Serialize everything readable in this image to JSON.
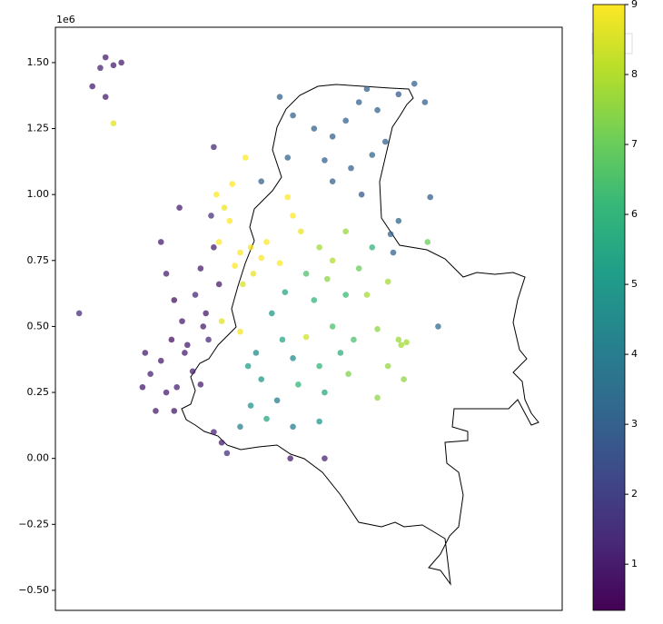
{
  "chart_data": {
    "type": "scatter",
    "offset_text": "1e6",
    "xlim": [
      0,
      1.92
    ],
    "ylim": [
      -0.576,
      1.634
    ],
    "yticks": [
      {
        "value": -0.5,
        "label": "−0.50"
      },
      {
        "value": -0.25,
        "label": "−0.25"
      },
      {
        "value": 0,
        "label": "0.00"
      },
      0.25,
      {
        "value": 0.5,
        "label": "0.50"
      },
      0.75,
      {
        "value": 1,
        "label": "1.00"
      },
      1.25,
      {
        "value": 1.5,
        "label": "1.50"
      }
    ],
    "x": [
      0.19,
      0.22,
      0.25,
      0.17,
      0.14,
      0.19,
      0.22,
      0.09,
      0.4,
      0.42,
      0.45,
      0.48,
      0.4,
      0.36,
      0.42,
      0.45,
      0.5,
      0.53,
      0.55,
      0.57,
      0.52,
      0.55,
      0.58,
      0.6,
      0.62,
      0.6,
      0.63,
      0.38,
      0.33,
      0.47,
      0.6,
      0.49,
      0.44,
      0.56,
      0.65,
      0.34,
      0.46,
      0.59,
      0.61,
      0.64,
      0.66,
      0.62,
      0.7,
      0.74,
      0.78,
      0.8,
      0.75,
      0.68,
      0.72,
      0.9,
      0.93,
      0.85,
      0.67,
      0.71,
      0.88,
      0.63,
      0.7,
      0.95,
      0.85,
      0.9,
      0.98,
      1.05,
      1.1,
      1.15,
      1.18,
      1.22,
      1.25,
      1.2,
      1.12,
      1.05,
      1.3,
      1.36,
      1.4,
      0.88,
      1.02,
      1.28,
      1.3,
      1.27,
      1.45,
      1.42,
      0.78,
      1.16,
      0.82,
      0.86,
      0.9,
      0.78,
      0.74,
      0.7,
      0.8,
      0.92,
      1,
      1.05,
      0.98,
      1.08,
      1.1,
      0.95,
      1.15,
      1.2,
      0.87,
      0.76,
      1.02,
      0.84,
      1.13,
      0.9,
      1,
      0.73,
      1,
      1.05,
      1.1,
      1.03,
      1.18,
      1.22,
      1.3,
      1.31,
      1.33,
      1.26,
      1.32,
      1.11,
      1.41,
      1.26,
      1.22,
      0.89,
      1.02
    ],
    "values": [
      1.52,
      1.49,
      1.5,
      1.48,
      1.41,
      1.37,
      1.27,
      0.55,
      0.82,
      0.7,
      0.6,
      0.52,
      0.37,
      0.32,
      0.25,
      0.18,
      0.43,
      0.62,
      0.72,
      0.55,
      0.33,
      0.28,
      0.45,
      0.8,
      0.66,
      0.1,
      0.06,
      0.18,
      0.27,
      0.95,
      1.18,
      0.4,
      0.45,
      0.5,
      0.02,
      0.4,
      0.27,
      0.92,
      1,
      0.95,
      0.9,
      0.82,
      0.78,
      0.8,
      0.76,
      0.82,
      0.7,
      0.73,
      1.14,
      0.92,
      0.86,
      0.74,
      1.04,
      0.66,
      0.99,
      0.52,
      0.48,
      0.46,
      1.37,
      1.3,
      1.25,
      1.22,
      1.28,
      1.35,
      1.4,
      1.32,
      1.2,
      1.15,
      1.1,
      1.05,
      1.38,
      1.42,
      1.35,
      1.14,
      1.13,
      0.78,
      0.9,
      0.85,
      0.5,
      0.99,
      1.05,
      1,
      0.55,
      0.45,
      0.38,
      0.3,
      0.2,
      0.12,
      0.15,
      0.28,
      0.35,
      0.5,
      0.6,
      0.4,
      0.62,
      0.7,
      0.72,
      0.8,
      0.63,
      0.4,
      0.25,
      0.22,
      0.45,
      0.12,
      0.14,
      0.35,
      0.8,
      0.75,
      0.86,
      0.68,
      0.62,
      0.49,
      0.45,
      0.43,
      0.44,
      0.35,
      0.3,
      0.32,
      0.82,
      0.67,
      0.23,
      0,
      0
    ],
    "color_values": [
      1,
      1,
      1,
      1.2,
      1,
      1,
      8.6,
      1.5,
      1,
      1.1,
      0.8,
      1,
      1,
      1.2,
      1,
      0.9,
      1,
      1.3,
      1,
      0.9,
      1.1,
      1,
      1.4,
      1,
      1,
      1.2,
      1,
      1,
      1,
      1,
      1.3,
      1,
      0.8,
      1,
      1.5,
      1,
      1.1,
      1.6,
      9,
      8.8,
      9,
      9,
      9,
      8.9,
      9,
      9,
      8.7,
      9,
      9,
      9,
      8.8,
      9,
      9,
      8.5,
      9,
      8.6,
      8.9,
      8.4,
      3,
      3.1,
      3,
      3,
      3,
      3,
      3,
      3,
      3,
      3.2,
      3,
      3,
      2.8,
      3,
      3,
      3.2,
      3,
      3.1,
      3.2,
      3,
      3.3,
      2.9,
      3,
      2.7,
      5,
      5.5,
      4.5,
      5,
      4.8,
      4.2,
      5.5,
      6,
      6,
      6.5,
      6,
      5.8,
      6.2,
      6.5,
      7,
      6,
      5.5,
      4.5,
      5.5,
      4,
      6.5,
      4,
      5,
      5.2,
      7.8,
      8,
      7.6,
      7.5,
      7.8,
      7.5,
      7.7,
      7.8,
      7.8,
      7.6,
      7.5,
      7.3,
      7,
      7.8,
      7.5,
      1,
      1.2
    ],
    "colormap": "viridis",
    "clim": [
      0.34,
      9
    ],
    "cticks": [
      1,
      2,
      3,
      4,
      5,
      6,
      7,
      8,
      9
    ],
    "alpha": 0.75
  }
}
